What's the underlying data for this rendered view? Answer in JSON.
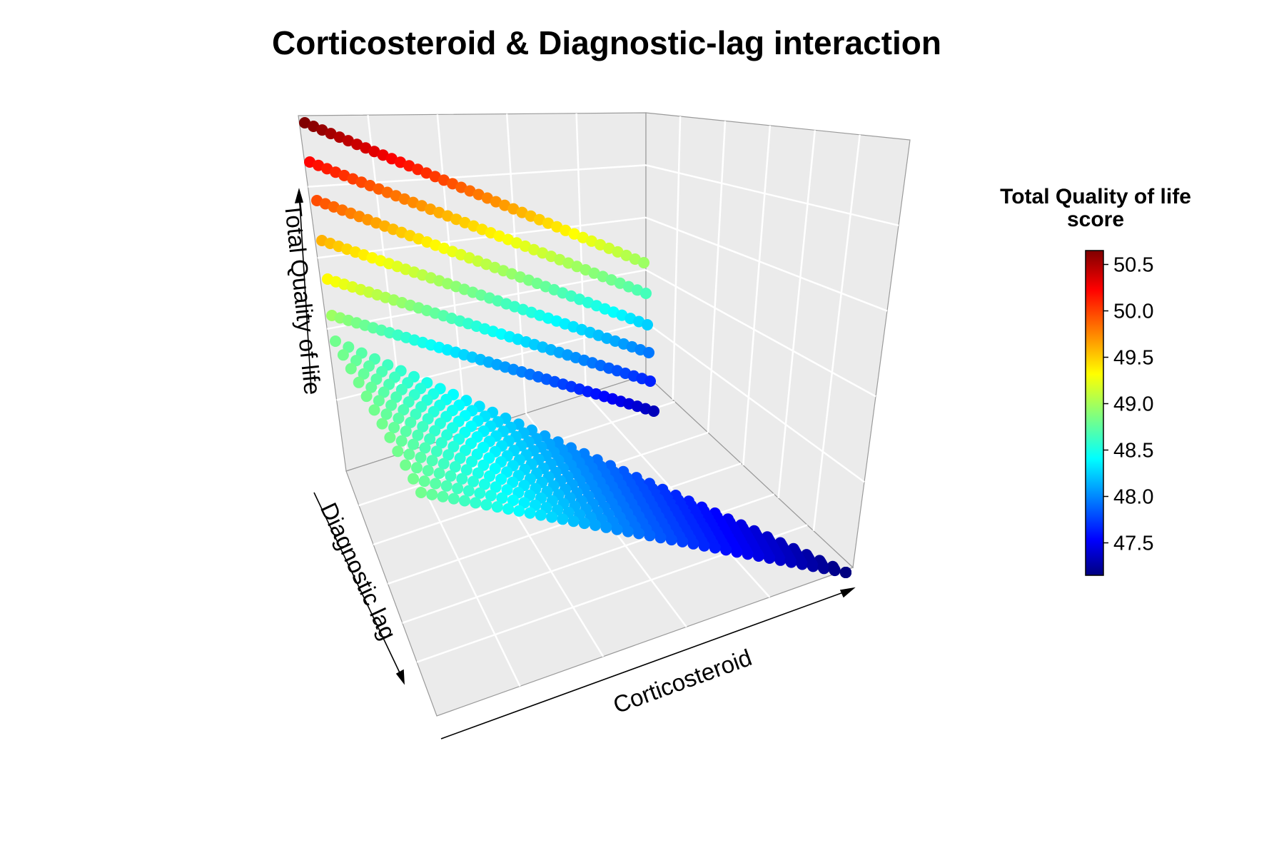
{
  "chart_data": {
    "type": "scatter3d",
    "title": "Corticosteroid & Diagnostic-lag interaction",
    "xlabel": "Corticosteroid",
    "ylabel": "Diagnostic lag",
    "zlabel": "Total Quality of life",
    "grid": true,
    "colorbar": {
      "title_line1": "Total Quality of life",
      "title_line2": "score",
      "range": [
        47.15,
        50.65
      ],
      "ticks": [
        "50.5",
        "50.0",
        "49.5",
        "49.0",
        "48.5",
        "48.0",
        "47.5"
      ],
      "tick_values": [
        50.5,
        50.0,
        49.5,
        49.0,
        48.5,
        48.0,
        47.5
      ],
      "palette": "jet"
    },
    "surface": {
      "corticosteroid_levels": 40,
      "diagnostic_lag_levels": 12,
      "diagnostic_lag_elevated_levels": 6,
      "value_at_min_corticosteroid_min_lag": 48.85,
      "value_at_max_corticosteroid_min_lag": 47.15,
      "value_at_min_corticosteroid_max_lag": 48.85,
      "value_at_max_corticosteroid_max_lag": 47.15,
      "value_at_min_corticosteroid_top_line": 50.65
    },
    "elevated_lines": [
      {
        "start": 50.65,
        "end": 49.0
      },
      {
        "start": 50.2,
        "end": 48.7
      },
      {
        "start": 49.95,
        "end": 48.3
      },
      {
        "start": 49.6,
        "end": 48.0
      },
      {
        "start": 49.35,
        "end": 47.7
      },
      {
        "start": 49.0,
        "end": 47.35
      }
    ]
  }
}
